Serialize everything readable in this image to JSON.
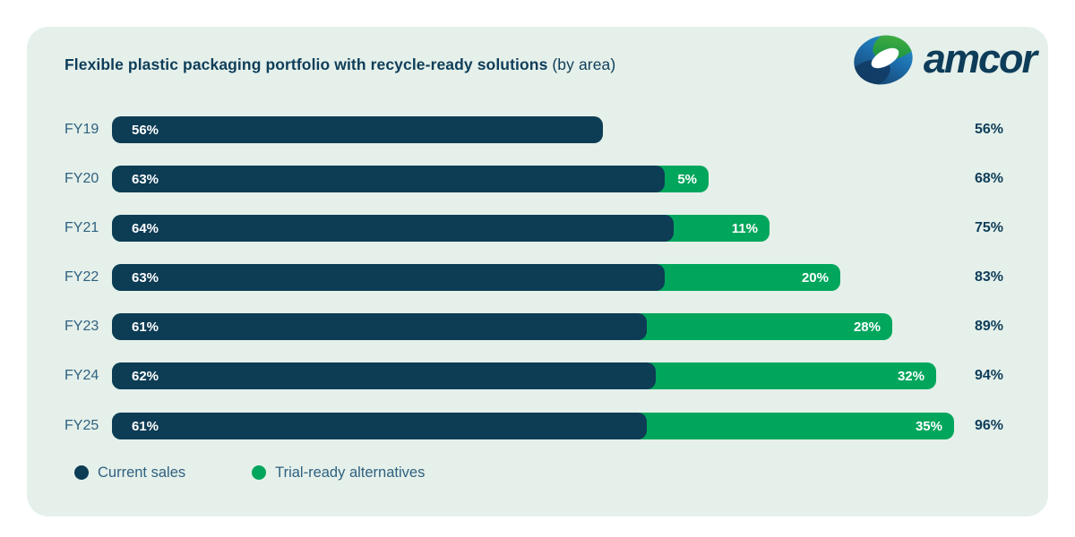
{
  "header": {
    "title_bold": "Flexible plastic packaging portfolio with recycle-ready solutions",
    "title_suffix": " (by area)",
    "logo_text": "amcor"
  },
  "colors": {
    "navy": "#0d3c55",
    "green": "#00a65c",
    "title": "#0e3d59",
    "label": "#2f6180",
    "card_background": "#e5f0ea",
    "page_background": "#ffffff"
  },
  "chart_data": {
    "type": "bar",
    "orientation": "horizontal",
    "stacked": true,
    "title": "Flexible plastic packaging portfolio with recycle-ready solutions (by area)",
    "unit": "%",
    "xlim": [
      0,
      100
    ],
    "grid": false,
    "legend_position": "bottom-left",
    "categories": [
      "FY19",
      "FY20",
      "FY21",
      "FY22",
      "FY23",
      "FY24",
      "FY25"
    ],
    "series": [
      {
        "name": "Current sales",
        "color": "#0d3c55",
        "values": [
          56,
          63,
          64,
          63,
          61,
          62,
          61
        ]
      },
      {
        "name": "Trial-ready alternatives",
        "color": "#00a65c",
        "values": [
          0,
          5,
          11,
          20,
          28,
          32,
          35
        ]
      }
    ],
    "totals": [
      56,
      68,
      75,
      83,
      89,
      94,
      96
    ],
    "rows": [
      {
        "year": "FY19",
        "current": 56,
        "trial": 0,
        "total": 56,
        "current_label": "56%",
        "trial_label": "",
        "total_label": "56%"
      },
      {
        "year": "FY20",
        "current": 63,
        "trial": 5,
        "total": 68,
        "current_label": "63%",
        "trial_label": "5%",
        "total_label": "68%"
      },
      {
        "year": "FY21",
        "current": 64,
        "trial": 11,
        "total": 75,
        "current_label": "64%",
        "trial_label": "11%",
        "total_label": "75%"
      },
      {
        "year": "FY22",
        "current": 63,
        "trial": 20,
        "total": 83,
        "current_label": "63%",
        "trial_label": "20%",
        "total_label": "83%"
      },
      {
        "year": "FY23",
        "current": 61,
        "trial": 28,
        "total": 89,
        "current_label": "61%",
        "trial_label": "28%",
        "total_label": "89%"
      },
      {
        "year": "FY24",
        "current": 62,
        "trial": 32,
        "total": 94,
        "current_label": "62%",
        "trial_label": "32%",
        "total_label": "94%"
      },
      {
        "year": "FY25",
        "current": 61,
        "trial": 35,
        "total": 96,
        "current_label": "61%",
        "trial_label": "35%",
        "total_label": "96%"
      }
    ],
    "legend": [
      {
        "label": "Current sales",
        "color": "#0d3c55"
      },
      {
        "label": "Trial-ready alternatives",
        "color": "#00a65c"
      }
    ]
  }
}
